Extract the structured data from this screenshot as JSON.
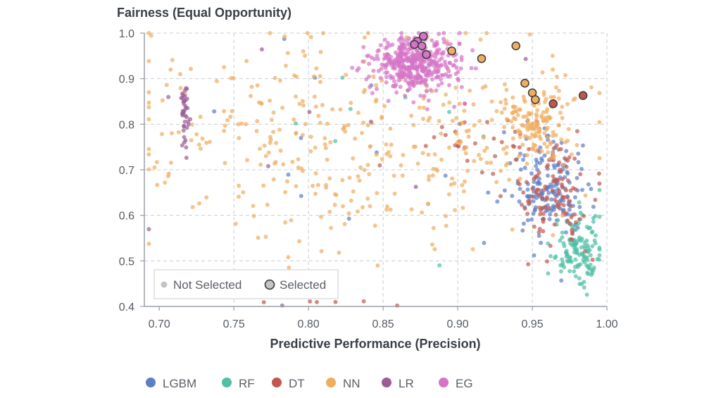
{
  "chart_data": {
    "type": "scatter",
    "title": "Fairness (Equal Opportunity)",
    "xlabel": "Predictive Performance (Precision)",
    "ylabel": "Fairness (Equal Opportunity)",
    "xlim": [
      0.69,
      1.0
    ],
    "ylim": [
      0.4,
      1.0
    ],
    "xticks": [
      0.7,
      0.75,
      0.8,
      0.85,
      0.9,
      0.95,
      1.0
    ],
    "xtick_labels": [
      "0.70",
      "0.75",
      "0.80",
      "0.85",
      "0.90",
      "0.95",
      "1.00"
    ],
    "yticks": [
      0.4,
      0.5,
      0.6,
      0.7,
      0.8,
      0.9,
      1.0
    ],
    "ytick_labels": [
      "0.4",
      "0.5",
      "0.6",
      "0.7",
      "0.8",
      "0.9",
      "1.0"
    ],
    "grid": true,
    "selection_legend": {
      "position": "bottom-left",
      "not_selected": "Not Selected",
      "selected": "Selected"
    },
    "series": [
      {
        "name": "LGBM",
        "color": "#5b7fc7",
        "clusters": [
          {
            "n": 170,
            "cx": 0.962,
            "cy": 0.655,
            "sx": 0.012,
            "sy": 0.055
          },
          {
            "n": 12,
            "cx": 0.82,
            "cy": 0.78,
            "sx": 0.07,
            "sy": 0.12
          }
        ]
      },
      {
        "name": "RF",
        "color": "#4fbfa5",
        "clusters": [
          {
            "n": 130,
            "cx": 0.983,
            "cy": 0.52,
            "sx": 0.009,
            "sy": 0.04
          },
          {
            "n": 8,
            "cx": 0.86,
            "cy": 0.75,
            "sx": 0.07,
            "sy": 0.12
          }
        ]
      },
      {
        "name": "DT",
        "color": "#c0584e",
        "clusters": [
          {
            "n": 110,
            "cx": 0.965,
            "cy": 0.64,
            "sx": 0.013,
            "sy": 0.06
          },
          {
            "n": 30,
            "cx": 0.915,
            "cy": 0.76,
            "sx": 0.02,
            "sy": 0.04
          },
          {
            "n": 6,
            "cx": 0.8,
            "cy": 0.41,
            "sx": 0.04,
            "sy": 0.005
          }
        ]
      },
      {
        "name": "NN",
        "color": "#efad5e",
        "clusters": [
          {
            "n": 140,
            "cx": 0.952,
            "cy": 0.805,
            "sx": 0.012,
            "sy": 0.04
          },
          {
            "n": 330,
            "cx": 0.82,
            "cy": 0.77,
            "sx": 0.075,
            "sy": 0.12
          },
          {
            "n": 30,
            "cx": 0.91,
            "cy": 0.7,
            "sx": 0.025,
            "sy": 0.08
          }
        ]
      },
      {
        "name": "LR",
        "color": "#9a5d96",
        "clusters": [
          {
            "n": 38,
            "cx": 0.717,
            "cy": 0.82,
            "sx": 0.0015,
            "sy": 0.03
          },
          {
            "n": 10,
            "cx": 0.82,
            "cy": 0.75,
            "sx": 0.09,
            "sy": 0.15
          }
        ]
      },
      {
        "name": "EG",
        "color": "#d575c8",
        "clusters": [
          {
            "n": 430,
            "cx": 0.872,
            "cy": 0.935,
            "sx": 0.014,
            "sy": 0.03
          }
        ]
      }
    ],
    "selected_points": [
      {
        "series": "EG",
        "x": 0.877,
        "y": 0.993
      },
      {
        "series": "EG",
        "x": 0.873,
        "y": 0.982
      },
      {
        "series": "EG",
        "x": 0.871,
        "y": 0.975
      },
      {
        "series": "EG",
        "x": 0.876,
        "y": 0.972
      },
      {
        "series": "EG",
        "x": 0.879,
        "y": 0.953
      },
      {
        "series": "NN",
        "x": 0.896,
        "y": 0.961
      },
      {
        "series": "NN",
        "x": 0.916,
        "y": 0.944
      },
      {
        "series": "NN",
        "x": 0.939,
        "y": 0.972
      },
      {
        "series": "NN",
        "x": 0.945,
        "y": 0.89
      },
      {
        "series": "NN",
        "x": 0.95,
        "y": 0.869
      },
      {
        "series": "NN",
        "x": 0.952,
        "y": 0.854
      },
      {
        "series": "DT",
        "x": 0.964,
        "y": 0.845
      },
      {
        "series": "DT",
        "x": 0.984,
        "y": 0.863
      }
    ]
  },
  "model_legend": [
    {
      "label": "LGBM",
      "color": "#5b7fc7"
    },
    {
      "label": "RF",
      "color": "#4fbfa5"
    },
    {
      "label": "DT",
      "color": "#c0584e"
    },
    {
      "label": "NN",
      "color": "#efad5e"
    },
    {
      "label": "LR",
      "color": "#9a5d96"
    },
    {
      "label": "EG",
      "color": "#d575c8"
    }
  ]
}
